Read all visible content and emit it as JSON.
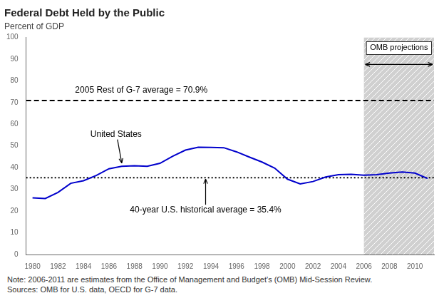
{
  "chart_data": {
    "type": "line",
    "title": "Federal Debt Held by the Public",
    "subtitle": "Percent of GDP",
    "x": [
      1980,
      1981,
      1982,
      1983,
      1984,
      1985,
      1986,
      1987,
      1988,
      1989,
      1990,
      1991,
      1992,
      1993,
      1994,
      1995,
      1996,
      1997,
      1998,
      1999,
      2000,
      2001,
      2002,
      2003,
      2004,
      2005,
      2006,
      2007,
      2008,
      2009,
      2010,
      2011
    ],
    "values": [
      26.1,
      25.8,
      28.6,
      32.8,
      34.0,
      36.4,
      39.5,
      40.6,
      40.9,
      40.6,
      42.0,
      45.3,
      48.1,
      49.4,
      49.3,
      49.2,
      47.3,
      44.9,
      42.6,
      39.8,
      34.7,
      32.5,
      33.6,
      35.7,
      36.8,
      36.9,
      36.5,
      36.8,
      37.5,
      38.0,
      37.5,
      35.0
    ],
    "color": "#0000CC",
    "xlim": [
      1979.5,
      2011.5
    ],
    "ylim": [
      0,
      100
    ],
    "xticks": [
      1980,
      1982,
      1984,
      1986,
      1988,
      1990,
      1992,
      1994,
      1996,
      1998,
      2000,
      2002,
      2004,
      2006,
      2008,
      2010
    ],
    "yticks": [
      0,
      10,
      20,
      30,
      40,
      50,
      60,
      70,
      80,
      90,
      100
    ],
    "grid": false,
    "reference_lines": [
      {
        "value": 70.9,
        "label": "2005 Rest of G-7 average = 70.9%",
        "line_style": "dashed",
        "color": "#000000"
      },
      {
        "value": 35.4,
        "label": "40-year U.S. historical average = 35.4%",
        "line_style": "dotted",
        "color": "#000000"
      }
    ],
    "annotations": [
      {
        "text": "United States",
        "x": 1987.0,
        "y": 41.5
      }
    ],
    "projection": {
      "from": 2006,
      "label": "OMB projections"
    },
    "note": "Note: 2006-2011 are estimates from the Office of Management and Budget's (OMB) Mid-Session Review.\nSources: OMB for U.S. data, OECD for G-7 data."
  }
}
